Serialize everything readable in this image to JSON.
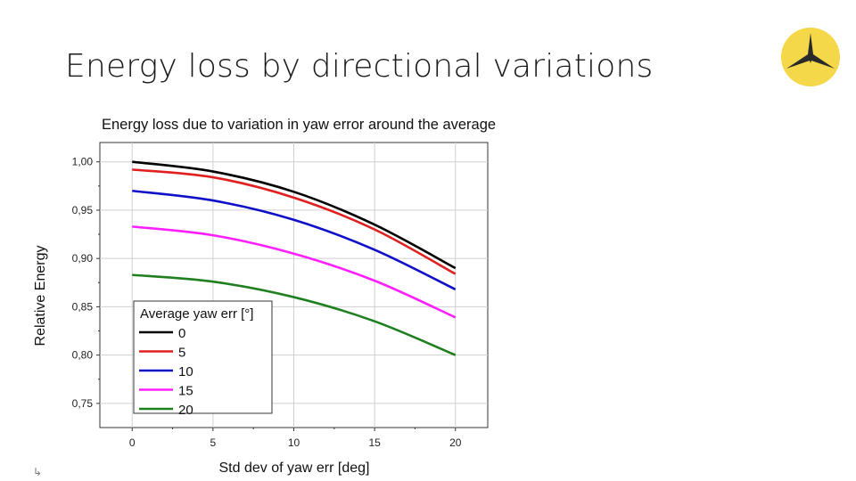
{
  "slide": {
    "title": "Energy loss by directional variations",
    "logo_icon": "turbine-star-logo-icon",
    "logo_color": "#f5d84a"
  },
  "chart_data": {
    "type": "line",
    "title": "Energy loss due to variation in yaw error around the average",
    "xlabel": "Std dev of yaw err [deg]",
    "ylabel": "Relative Energy",
    "xlim": [
      -2,
      22
    ],
    "ylim": [
      0.725,
      1.02
    ],
    "x_ticks": [
      "0",
      "5",
      "10",
      "15",
      "20"
    ],
    "y_ticks": [
      "1,00",
      "0,95",
      "0,90",
      "0,85",
      "0,80",
      "0,75"
    ],
    "y_tick_values": [
      1.0,
      0.95,
      0.9,
      0.85,
      0.8,
      0.75
    ],
    "x_tick_values": [
      0,
      5,
      10,
      15,
      20
    ],
    "grid": true,
    "legend": {
      "title": "Average yaw err [°]",
      "placement": "bottom-left"
    },
    "x": [
      0,
      5,
      10,
      15,
      20
    ],
    "series": [
      {
        "name": "0",
        "color": "#000000",
        "values": [
          1.0,
          0.99,
          0.969,
          0.935,
          0.89
        ]
      },
      {
        "name": "5",
        "color": "#e02020",
        "values": [
          0.992,
          0.984,
          0.963,
          0.93,
          0.884
        ]
      },
      {
        "name": "10",
        "color": "#1010c8",
        "values": [
          0.97,
          0.96,
          0.94,
          0.909,
          0.868
        ]
      },
      {
        "name": "15",
        "color": "#ff20ff",
        "values": [
          0.933,
          0.924,
          0.905,
          0.877,
          0.839
        ]
      },
      {
        "name": "20",
        "color": "#208020",
        "values": [
          0.883,
          0.876,
          0.86,
          0.835,
          0.8
        ]
      }
    ]
  },
  "footer": {
    "cursor_glyph": "↳"
  }
}
